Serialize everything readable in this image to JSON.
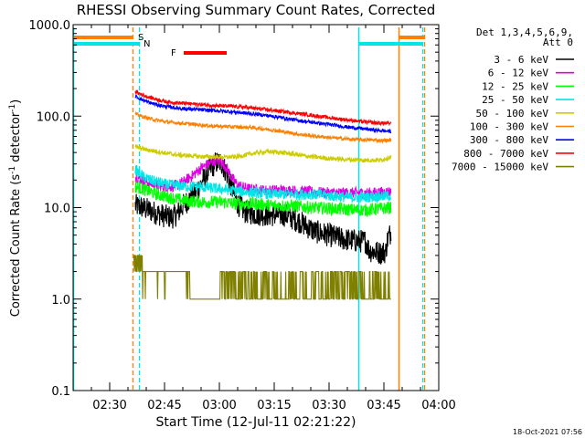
{
  "chart_data": {
    "type": "line",
    "title": "RHESSI Observing Summary Count Rates, Corrected",
    "xlabel": "Start Time (12-Jul-11 02:21:22)",
    "ylabel_main": "Corrected Count Rate (s",
    "ylabel_sup1": "-1",
    "ylabel_mid": " detector",
    "ylabel_sup2": "-1",
    "ylabel_end": ")",
    "yscale": "log",
    "ylim": [
      0.1,
      1000
    ],
    "xlim_minutes": [
      0,
      100
    ],
    "x_ticks": [
      {
        "label": "02:30",
        "min": 10
      },
      {
        "label": "02:45",
        "min": 25
      },
      {
        "label": "03:00",
        "min": 40
      },
      {
        "label": "03:15",
        "min": 55
      },
      {
        "label": "03:30",
        "min": 70
      },
      {
        "label": "03:45",
        "min": 85
      },
      {
        "label": "04:00",
        "min": 100
      }
    ],
    "y_ticks": [
      {
        "label": "0.1",
        "value": 0.1
      },
      {
        "label": "1.0",
        "value": 1
      },
      {
        "label": "10.0",
        "value": 10
      },
      {
        "label": "100.0",
        "value": 100
      },
      {
        "label": "1000.0",
        "value": 1000
      }
    ],
    "legend_header": [
      "Det 1,3,4,5,6,9,",
      "Att 0"
    ],
    "legend_placement": "right",
    "series": [
      {
        "name": "3 - 6 keV",
        "color": "#000000",
        "noise": 0.13,
        "points": [
          [
            17,
            10.5
          ],
          [
            19,
            10
          ],
          [
            21,
            9.3
          ],
          [
            23,
            8.6
          ],
          [
            25,
            8.1
          ],
          [
            27,
            7.8
          ],
          [
            28.5,
            8.5
          ],
          [
            30,
            10.5
          ],
          [
            31.5,
            12
          ],
          [
            33,
            14
          ],
          [
            35,
            18
          ],
          [
            37,
            25
          ],
          [
            39,
            31
          ],
          [
            40.5,
            31
          ],
          [
            42,
            24
          ],
          [
            43.5,
            16
          ],
          [
            45,
            11
          ],
          [
            47,
            9
          ],
          [
            50,
            8.5
          ],
          [
            54,
            8.3
          ],
          [
            58,
            8.3
          ],
          [
            62,
            7
          ],
          [
            66,
            5.5
          ],
          [
            70,
            5
          ],
          [
            74,
            4.5
          ],
          [
            78,
            4.3
          ],
          [
            80,
            4.3
          ],
          [
            81,
            3.4
          ],
          [
            84,
            3.2
          ],
          [
            85.5,
            3.3
          ],
          [
            86,
            4.5
          ],
          [
            87,
            5.5
          ]
        ]
      },
      {
        "name": "6 - 12 keV",
        "color": "#e100e1",
        "noise": 0.06,
        "points": [
          [
            17,
            22
          ],
          [
            19,
            20
          ],
          [
            21,
            18.5
          ],
          [
            23,
            17.5
          ],
          [
            25,
            17
          ],
          [
            27,
            17
          ],
          [
            29,
            18
          ],
          [
            31,
            20
          ],
          [
            33,
            23
          ],
          [
            35,
            27
          ],
          [
            37,
            30
          ],
          [
            39,
            33
          ],
          [
            40.5,
            32
          ],
          [
            42,
            27
          ],
          [
            43.5,
            21
          ],
          [
            45,
            17.5
          ],
          [
            48,
            16
          ],
          [
            52,
            15.5
          ],
          [
            58,
            15.5
          ],
          [
            64,
            15
          ],
          [
            70,
            14.5
          ],
          [
            76,
            14.5
          ],
          [
            82,
            14.5
          ],
          [
            87,
            15
          ]
        ]
      },
      {
        "name": "12 - 25 keV",
        "color": "#00ff00",
        "noise": 0.07,
        "points": [
          [
            17,
            17
          ],
          [
            20,
            15.5
          ],
          [
            23,
            14
          ],
          [
            26,
            13
          ],
          [
            30,
            12
          ],
          [
            35,
            11.5
          ],
          [
            40,
            11.5
          ],
          [
            45,
            11
          ],
          [
            50,
            11
          ],
          [
            55,
            10.5
          ],
          [
            60,
            10.5
          ],
          [
            65,
            10
          ],
          [
            70,
            9.8
          ],
          [
            75,
            9.5
          ],
          [
            80,
            9.4
          ],
          [
            87,
            10
          ]
        ]
      },
      {
        "name": "25 - 50 keV",
        "color": "#00e6e6",
        "noise": 0.06,
        "points": [
          [
            17,
            26
          ],
          [
            19,
            22
          ],
          [
            21,
            20
          ],
          [
            23,
            19
          ],
          [
            25,
            18
          ],
          [
            28,
            17.5
          ],
          [
            31,
            17
          ],
          [
            34,
            17
          ],
          [
            37,
            16.5
          ],
          [
            40,
            16
          ],
          [
            43,
            15.5
          ],
          [
            46,
            15
          ],
          [
            50,
            14.5
          ],
          [
            55,
            14
          ],
          [
            60,
            14
          ],
          [
            65,
            14
          ],
          [
            70,
            13.5
          ],
          [
            75,
            13
          ],
          [
            80,
            13
          ],
          [
            87,
            13.5
          ]
        ]
      },
      {
        "name": "50 - 100 keV",
        "color": "#cccc00",
        "noise": 0.025,
        "points": [
          [
            17,
            46
          ],
          [
            20,
            43
          ],
          [
            23,
            41
          ],
          [
            26,
            39
          ],
          [
            29,
            37.5
          ],
          [
            32,
            37
          ],
          [
            35,
            36
          ],
          [
            38,
            36
          ],
          [
            41,
            35.5
          ],
          [
            45,
            36
          ],
          [
            49,
            39
          ],
          [
            53,
            41
          ],
          [
            57,
            40
          ],
          [
            61,
            38
          ],
          [
            65,
            36
          ],
          [
            70,
            34.5
          ],
          [
            75,
            33.5
          ],
          [
            80,
            33
          ],
          [
            84,
            33
          ],
          [
            87,
            36
          ]
        ]
      },
      {
        "name": "100 - 300 keV",
        "color": "#ff8000",
        "noise": 0.02,
        "points": [
          [
            17,
            105
          ],
          [
            20,
            96
          ],
          [
            23,
            90
          ],
          [
            26,
            86
          ],
          [
            29,
            84
          ],
          [
            32,
            82
          ],
          [
            35,
            80
          ],
          [
            38,
            78
          ],
          [
            41,
            77
          ],
          [
            45,
            76
          ],
          [
            49,
            75
          ],
          [
            53,
            72
          ],
          [
            57,
            68
          ],
          [
            61,
            64
          ],
          [
            65,
            61
          ],
          [
            69,
            59
          ],
          [
            73,
            57
          ],
          [
            77,
            55.5
          ],
          [
            81,
            55
          ],
          [
            85,
            54
          ],
          [
            87,
            55
          ]
        ]
      },
      {
        "name": "300 - 800 keV",
        "color": "#0000ff",
        "noise": 0.02,
        "points": [
          [
            17,
            165
          ],
          [
            19,
            150
          ],
          [
            21,
            140
          ],
          [
            23,
            133
          ],
          [
            25,
            128
          ],
          [
            28,
            123
          ],
          [
            31,
            120
          ],
          [
            35,
            117
          ],
          [
            39,
            115
          ],
          [
            43,
            112
          ],
          [
            47,
            108
          ],
          [
            51,
            104
          ],
          [
            55,
            99
          ],
          [
            59,
            93
          ],
          [
            63,
            88
          ],
          [
            67,
            84
          ],
          [
            71,
            80
          ],
          [
            75,
            76
          ],
          [
            79,
            73
          ],
          [
            83,
            70
          ],
          [
            87,
            68
          ]
        ]
      },
      {
        "name": "800 - 7000 keV",
        "color": "#ff0000",
        "noise": 0.02,
        "points": [
          [
            17,
            185
          ],
          [
            19,
            170
          ],
          [
            21,
            160
          ],
          [
            23,
            152
          ],
          [
            25,
            145
          ],
          [
            28,
            140
          ],
          [
            31,
            137
          ],
          [
            35,
            134
          ],
          [
            39,
            130
          ],
          [
            43,
            128
          ],
          [
            47,
            125
          ],
          [
            51,
            120
          ],
          [
            55,
            115
          ],
          [
            59,
            110
          ],
          [
            63,
            105
          ],
          [
            67,
            100
          ],
          [
            71,
            95
          ],
          [
            75,
            91
          ],
          [
            79,
            87
          ],
          [
            83,
            84
          ],
          [
            87,
            83
          ]
        ]
      },
      {
        "name": "7000 - 15000 keV",
        "color": "#808000",
        "noise": 0,
        "points": []
      }
    ],
    "flag_labels": {
      "saa": "S",
      "night": "N",
      "flare": "F"
    },
    "timestamp": "18-Oct-2021 07:56"
  }
}
